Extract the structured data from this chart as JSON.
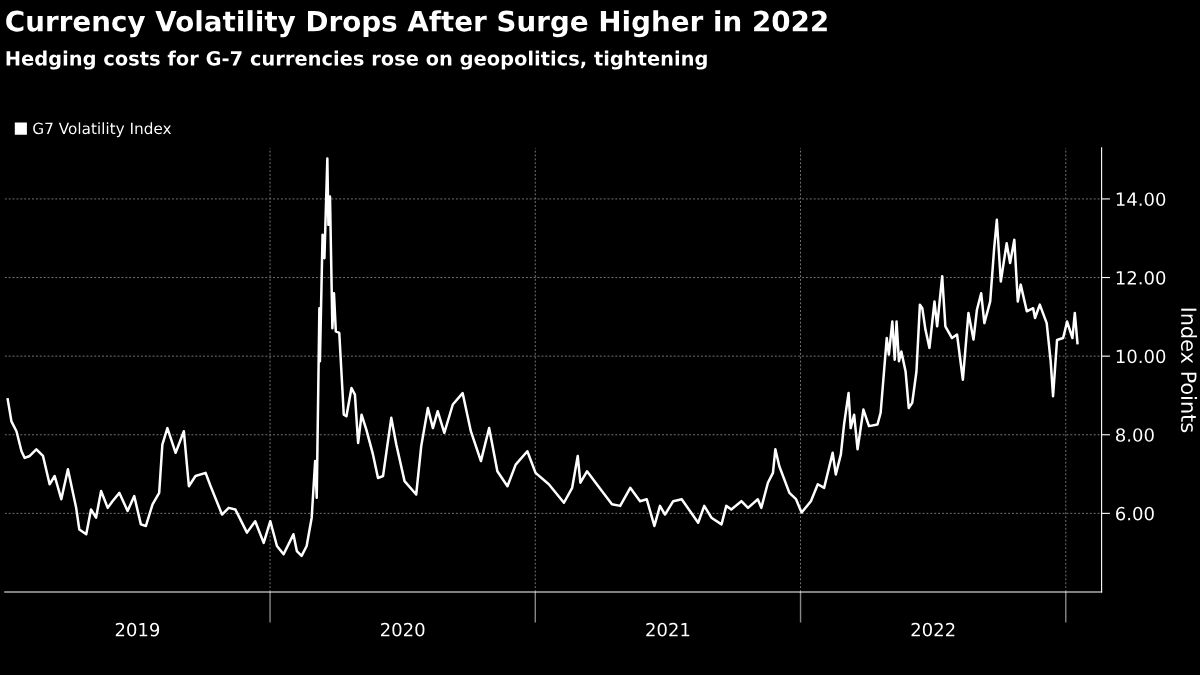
{
  "chart_data": {
    "type": "line",
    "title": "Currency Volatility Drops After Surge Higher in 2022",
    "subtitle": "Hedging costs for G-7 currencies rose on geopolitics, tightening",
    "ylabel": "Index Points",
    "x": [
      2019.011,
      2019.025,
      2019.044,
      2019.063,
      2019.075,
      2019.094,
      2019.119,
      2019.144,
      2019.169,
      2019.188,
      2019.213,
      2019.238,
      2019.269,
      2019.281,
      2019.307,
      2019.325,
      2019.344,
      2019.363,
      2019.388,
      2019.406,
      2019.432,
      2019.463,
      2019.488,
      2019.513,
      2019.532,
      2019.557,
      2019.582,
      2019.594,
      2019.613,
      2019.644,
      2019.675,
      2019.694,
      2019.719,
      2019.757,
      2019.776,
      2019.819,
      2019.844,
      2019.869,
      2019.913,
      2019.944,
      2019.976,
      2020.001,
      2020.026,
      2020.051,
      2020.076,
      2020.088,
      2020.101,
      2020.119,
      2020.138,
      2020.157,
      2020.17,
      2020.176,
      2020.186,
      2020.188,
      2020.198,
      2020.205,
      2020.216,
      2020.22,
      2020.226,
      2020.235,
      2020.241,
      2020.248,
      2020.261,
      2020.278,
      2020.288,
      2020.307,
      2020.32,
      2020.332,
      2020.345,
      2020.363,
      2020.388,
      2020.407,
      2020.426,
      2020.457,
      2020.476,
      2020.507,
      2020.551,
      2020.57,
      2020.595,
      2020.614,
      2020.632,
      2020.657,
      2020.689,
      2020.726,
      2020.757,
      2020.795,
      2020.826,
      2020.857,
      2020.895,
      2020.926,
      2020.97,
      2021.001,
      2021.051,
      2021.108,
      2021.139,
      2021.16,
      2021.17,
      2021.195,
      2021.251,
      2021.289,
      2021.32,
      2021.358,
      2021.395,
      2021.42,
      2021.449,
      2021.47,
      2021.489,
      2021.52,
      2021.552,
      2021.614,
      2021.637,
      2021.664,
      2021.702,
      2021.72,
      2021.739,
      2021.777,
      2021.802,
      2021.839,
      2021.852,
      2021.877,
      2021.896,
      2021.905,
      2021.92,
      2021.958,
      2021.983,
      2022.004,
      2022.039,
      2022.065,
      2022.089,
      2022.121,
      2022.133,
      2022.152,
      2022.164,
      2022.181,
      2022.189,
      2022.202,
      2022.215,
      2022.237,
      2022.258,
      2022.29,
      2022.302,
      2022.325,
      2022.333,
      2022.346,
      2022.355,
      2022.362,
      2022.371,
      2022.38,
      2022.396,
      2022.408,
      2022.421,
      2022.437,
      2022.45,
      2022.459,
      2022.471,
      2022.486,
      2022.505,
      2022.515,
      2022.525,
      2022.534,
      2022.546,
      2022.571,
      2022.59,
      2022.612,
      2022.633,
      2022.652,
      2022.665,
      2022.681,
      2022.693,
      2022.715,
      2022.73,
      2022.74,
      2022.755,
      2022.777,
      2022.79,
      2022.806,
      2022.819,
      2022.83,
      2022.853,
      2022.877,
      2022.884,
      2022.902,
      2022.928,
      2022.943,
      2022.952,
      2022.967,
      2022.99,
      2023.005,
      2023.025,
      2023.034,
      2023.044
    ],
    "series": [
      {
        "name": "G7 Volatility Index",
        "color": "#ffffff",
        "values": [
          8.9,
          8.34,
          8.09,
          7.58,
          7.41,
          7.46,
          7.63,
          7.46,
          6.74,
          6.95,
          6.36,
          7.12,
          6.14,
          5.59,
          5.47,
          6.1,
          5.89,
          6.57,
          6.14,
          6.31,
          6.52,
          6.06,
          6.44,
          5.72,
          5.68,
          6.23,
          6.52,
          7.75,
          8.17,
          7.54,
          8.09,
          6.69,
          6.95,
          7.03,
          6.69,
          5.97,
          6.14,
          6.1,
          5.51,
          5.8,
          5.25,
          5.8,
          5.17,
          4.96,
          5.3,
          5.47,
          5.04,
          4.92,
          5.17,
          5.89,
          7.33,
          6.4,
          11.22,
          9.87,
          13.09,
          12.49,
          15.03,
          13.34,
          14.06,
          10.71,
          11.6,
          10.63,
          10.59,
          8.51,
          8.47,
          9.19,
          9.02,
          7.79,
          8.51,
          8.13,
          7.5,
          6.9,
          6.95,
          8.43,
          7.75,
          6.82,
          6.48,
          7.71,
          8.68,
          8.17,
          8.6,
          8.05,
          8.77,
          9.06,
          8.09,
          7.33,
          8.17,
          7.07,
          6.69,
          7.24,
          7.58,
          7.03,
          6.74,
          6.27,
          6.65,
          7.46,
          6.78,
          7.07,
          6.57,
          6.23,
          6.19,
          6.65,
          6.31,
          6.36,
          5.68,
          6.19,
          5.97,
          6.31,
          6.36,
          5.76,
          6.19,
          5.89,
          5.72,
          6.19,
          6.1,
          6.31,
          6.14,
          6.36,
          6.14,
          6.78,
          7.03,
          7.63,
          7.2,
          6.52,
          6.36,
          6.02,
          6.31,
          6.74,
          6.65,
          7.54,
          6.99,
          7.5,
          8.26,
          9.06,
          8.17,
          8.51,
          7.63,
          8.64,
          8.22,
          8.26,
          8.56,
          10.46,
          10.04,
          10.88,
          9.91,
          10.88,
          9.87,
          10.12,
          9.61,
          8.68,
          8.81,
          9.61,
          11.31,
          11.22,
          10.67,
          10.21,
          11.39,
          10.76,
          11.44,
          12.03,
          10.76,
          10.46,
          10.55,
          9.4,
          11.1,
          10.42,
          11.18,
          11.6,
          10.84,
          11.39,
          12.75,
          13.47,
          11.9,
          12.87,
          12.37,
          12.96,
          11.39,
          11.82,
          11.14,
          11.22,
          10.97,
          11.31,
          10.84,
          9.87,
          8.98,
          10.41,
          10.46,
          10.88,
          10.46,
          11.1,
          10.33
        ]
      }
    ],
    "xlim": [
      2019.0,
      2023.135
    ],
    "xticks": [
      {
        "value": 2020,
        "label": null
      },
      {
        "value": 2021,
        "label": null
      },
      {
        "value": 2022,
        "label": null
      },
      {
        "value": 2023,
        "label": null
      },
      {
        "value": 2019.5,
        "label": "2019"
      },
      {
        "value": 2020.5,
        "label": "2020"
      },
      {
        "value": 2021.5,
        "label": "2021"
      },
      {
        "value": 2022.5,
        "label": "2022"
      }
    ],
    "ylim": [
      4,
      15.3
    ],
    "yticks": [
      {
        "value": 6,
        "label": "6.00"
      },
      {
        "value": 8,
        "label": "8.00"
      },
      {
        "value": 10,
        "label": "10.00"
      },
      {
        "value": 12,
        "label": "12.00"
      },
      {
        "value": 14,
        "label": "14.00"
      }
    ],
    "grid": true,
    "legend": "top left",
    "marker": "none",
    "line_style": "solid"
  }
}
